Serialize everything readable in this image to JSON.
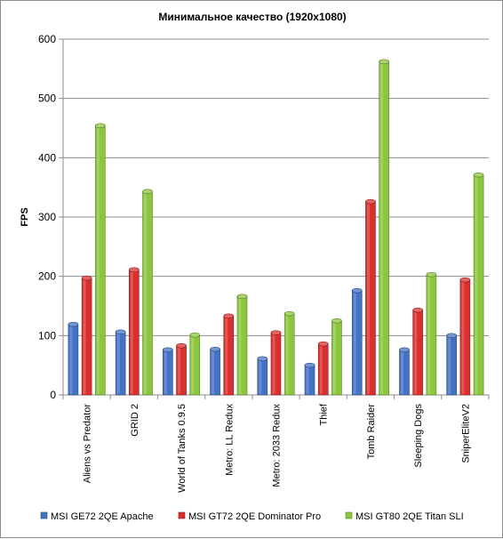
{
  "chart_data": {
    "type": "bar",
    "title": "Минимальное  качество  (1920x1080)",
    "ylabel": "FPS",
    "xlabel": "",
    "ylim": [
      0,
      600
    ],
    "yticks": [
      0,
      100,
      200,
      300,
      400,
      500,
      600
    ],
    "grid": true,
    "legend_position": "bottom",
    "categories": [
      "Aliens vs Predator",
      "GRID 2",
      "World of Tanks 0.9.5",
      "Metro: LL Redux",
      "Metro: 2033 Redux",
      "Thief",
      "Tomb Raider",
      "Sleeping Dogs",
      "SniperEliteV2"
    ],
    "series": [
      {
        "name": "MSI GE72 2QE Apache",
        "color": "#4472c4",
        "values": [
          122,
          109,
          79,
          80,
          64,
          53,
          179,
          79,
          103
        ]
      },
      {
        "name": "MSI GT72 2QE Dominator Pro",
        "color": "#d9302e",
        "values": [
          200,
          214,
          86,
          136,
          108,
          89,
          329,
          146,
          197
        ]
      },
      {
        "name": "MSI GT80 2QE Titan SLI",
        "color": "#8cc63f",
        "values": [
          457,
          346,
          104,
          169,
          140,
          128,
          565,
          206,
          374
        ]
      }
    ]
  }
}
